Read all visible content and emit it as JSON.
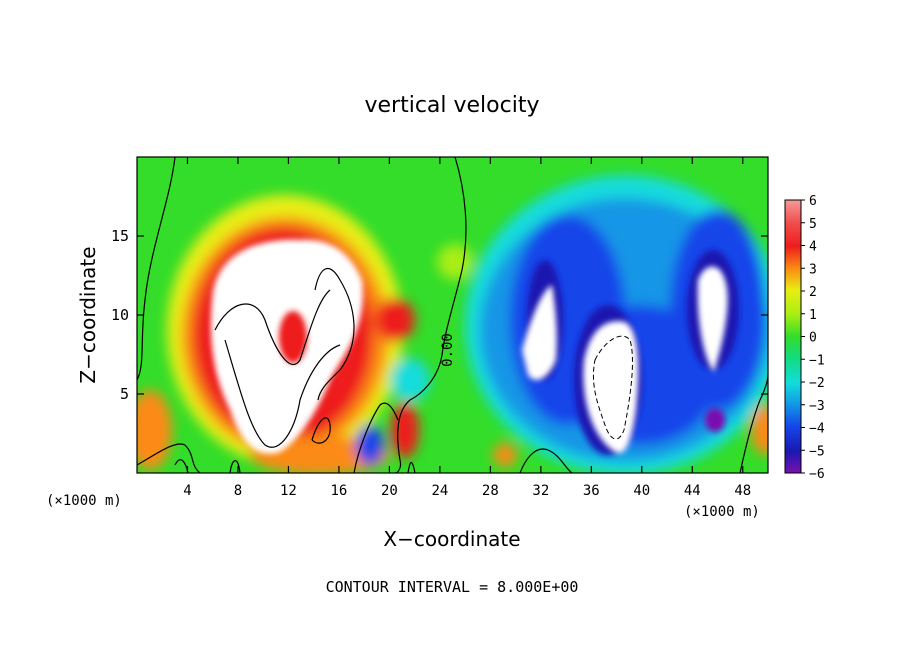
{
  "chart_data": {
    "type": "heatmap",
    "title": "vertical velocity",
    "xlabel": "X−coordinate",
    "ylabel": "Z−coordinate",
    "x_unit_left": "(×1000 m)",
    "x_unit_right": "(×1000 m)",
    "footer": "CONTOUR INTERVAL = 8.000E+00",
    "contour_label": "0.00",
    "xlim": [
      0,
      50
    ],
    "ylim": [
      0,
      20
    ],
    "x_ticks": [
      4,
      8,
      12,
      16,
      20,
      24,
      28,
      32,
      36,
      40,
      44,
      48
    ],
    "y_ticks": [
      5,
      10,
      15
    ],
    "x_tick_labels": [
      "4",
      "8",
      "12",
      "16",
      "20",
      "24",
      "28",
      "32",
      "36",
      "40",
      "44",
      "48"
    ],
    "y_tick_labels": [
      "5",
      "10",
      "15"
    ],
    "colorbar": {
      "min": -6,
      "max": 6,
      "ticks": [
        6,
        5,
        4,
        3,
        2,
        1,
        0,
        -1,
        -2,
        -3,
        -4,
        -5,
        -6
      ],
      "tick_labels": [
        "6",
        "5",
        "4",
        "3",
        "2",
        "1",
        "0",
        "−1",
        "−2",
        "−3",
        "−4",
        "−5",
        "−6"
      ]
    },
    "grid": false,
    "colors": {
      "strong_up": "#f59a9a",
      "up": "#ee1d1d",
      "orange": "#fb8a12",
      "yellow": "#e8ee12",
      "neutral": "#33dd2a",
      "cyan": "#12dcdc",
      "blue": "#1445ea",
      "strong_down": "#7a10b0",
      "saturated": "#ffffff"
    }
  }
}
